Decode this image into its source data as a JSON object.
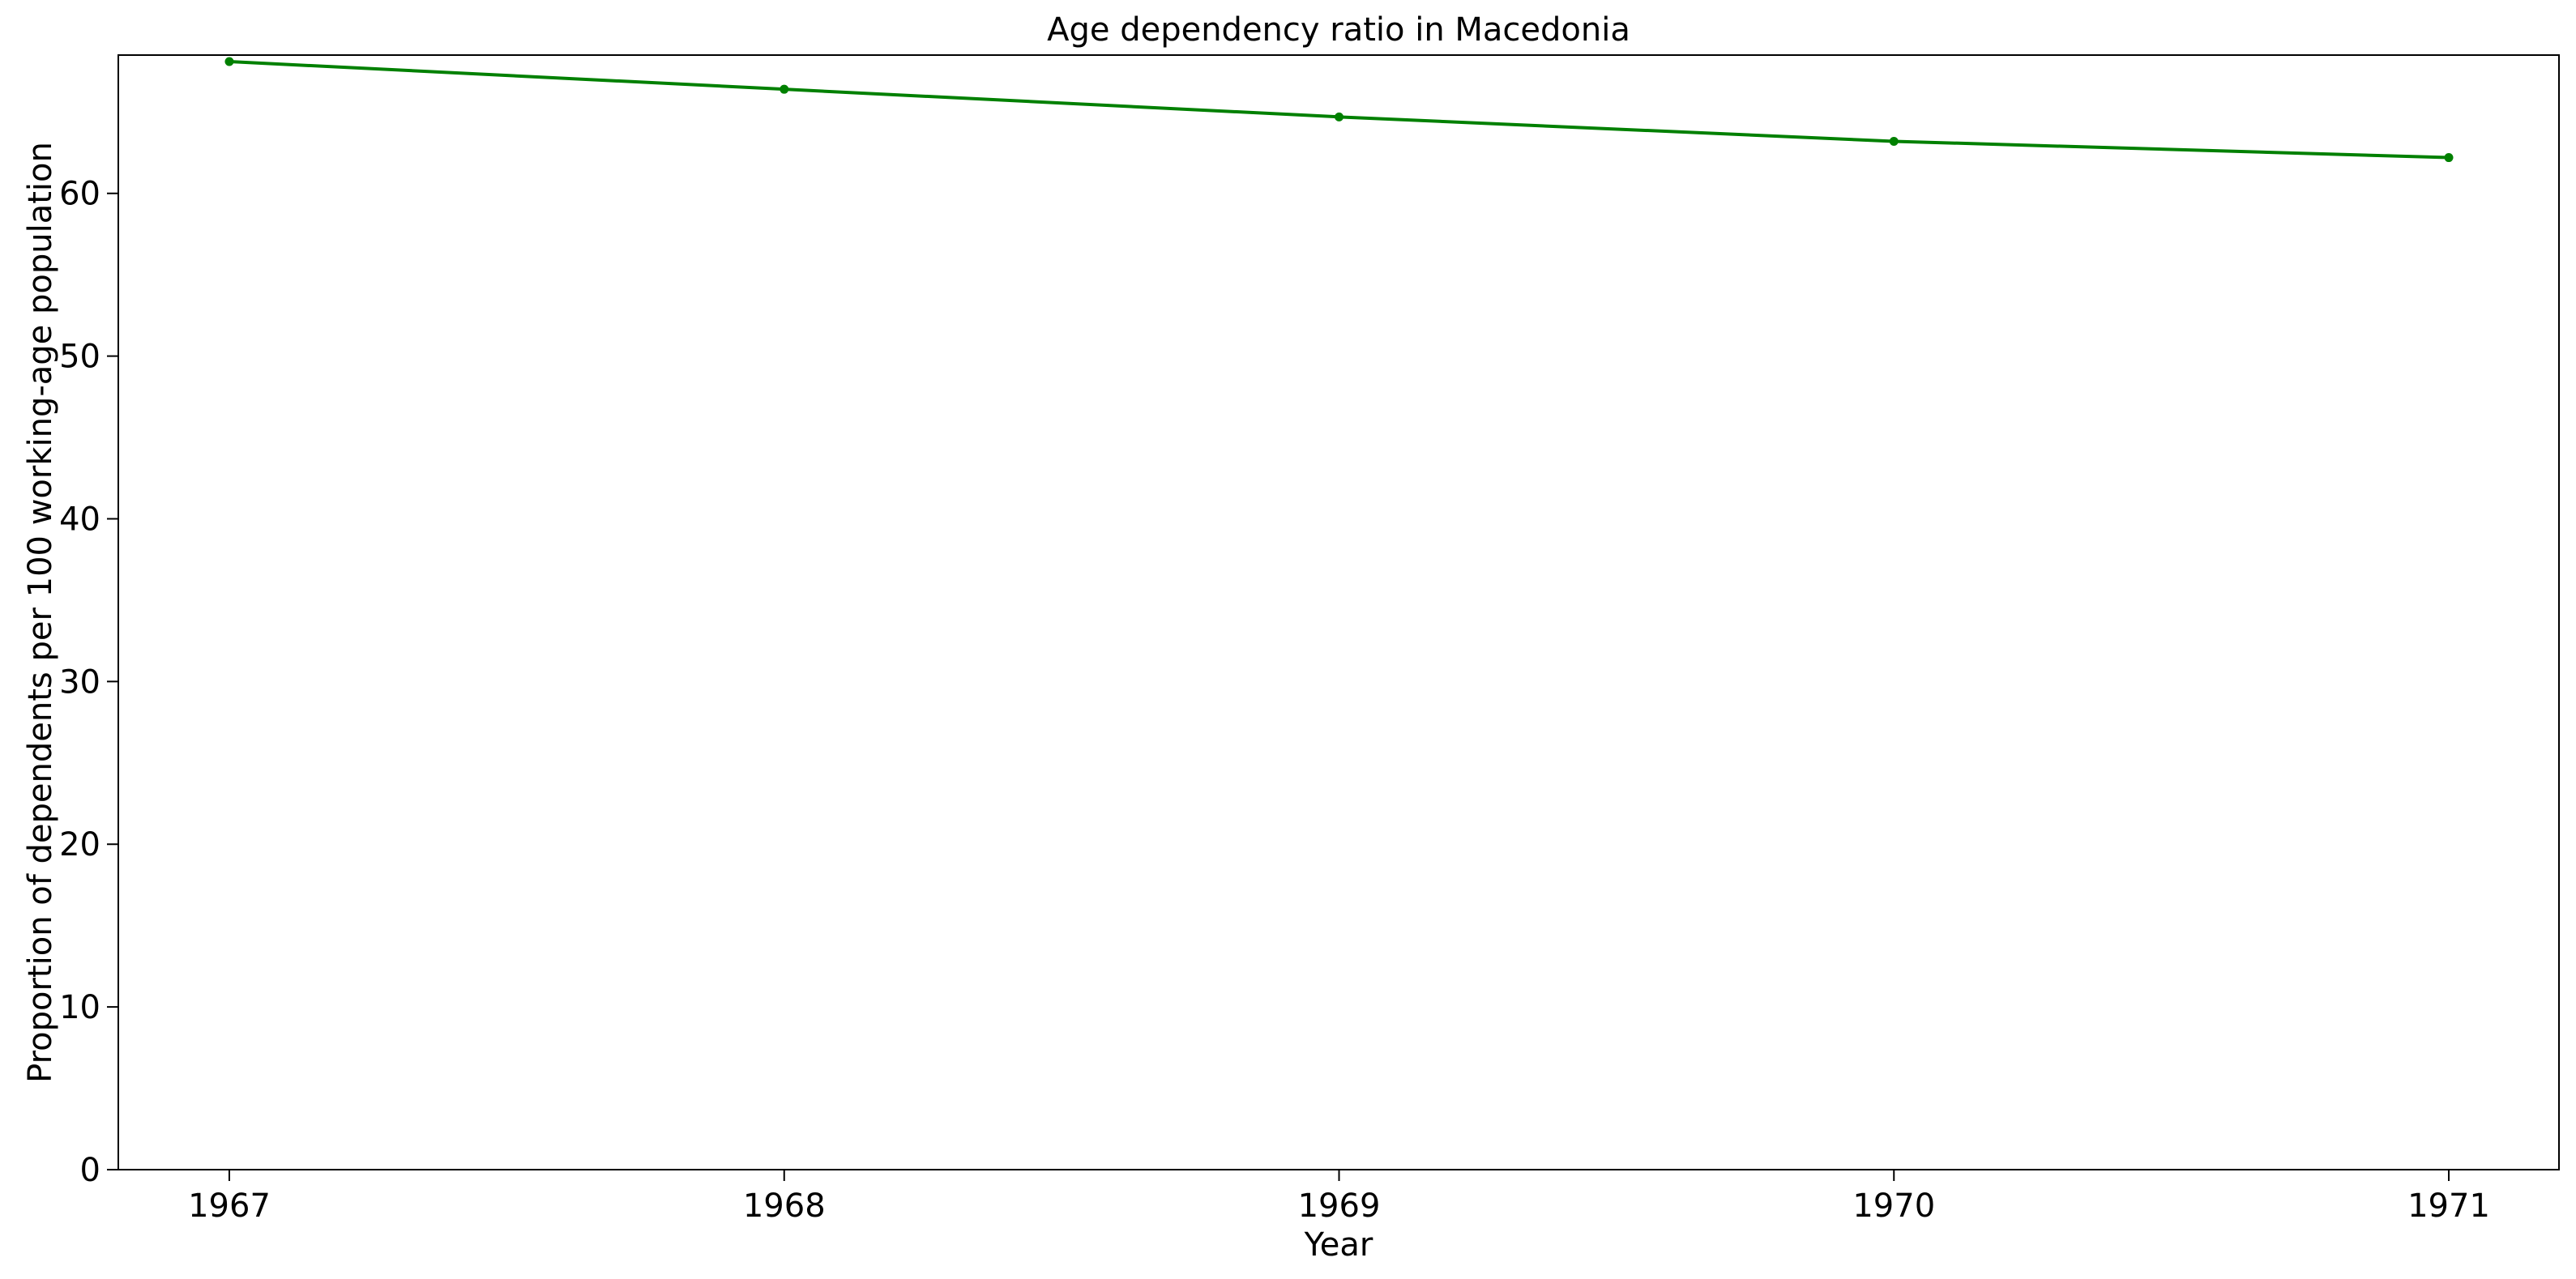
{
  "chart_data": {
    "type": "line",
    "title": "Age dependency ratio in Macedonia",
    "xlabel": "Year",
    "ylabel": "Proportion of dependents per 100 working-age population",
    "x": [
      "1967",
      "1968",
      "1969",
      "1970",
      "1971"
    ],
    "series": [
      {
        "values": [
          68.1,
          66.4,
          64.7,
          63.2,
          62.2
        ],
        "color": "#008000",
        "marker": "circle"
      }
    ],
    "x_ticks": [
      "1967",
      "1968",
      "1969",
      "1970",
      "1971"
    ],
    "y_ticks": [
      0,
      10,
      20,
      30,
      40,
      50,
      60
    ],
    "ylim": [
      0,
      68.5
    ],
    "grid": false,
    "legend": "none"
  }
}
